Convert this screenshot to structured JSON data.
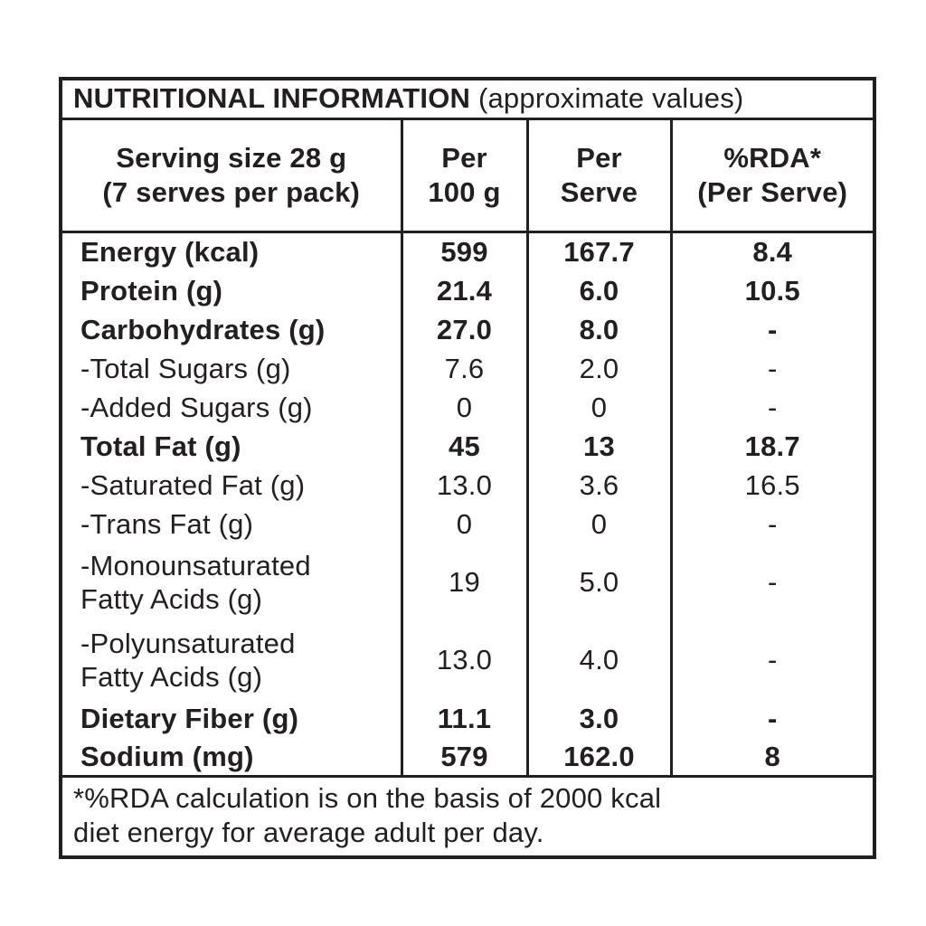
{
  "title": {
    "main": "NUTRITIONAL INFORMATION",
    "suffix": "(approximate values)"
  },
  "columns": [
    {
      "line1": "Serving size 28 g",
      "line2": "(7 serves per pack)"
    },
    {
      "line1": "Per",
      "line2": "100 g"
    },
    {
      "line1": "Per",
      "line2": "Serve"
    },
    {
      "line1": "%RDA*",
      "line2": "(Per Serve)"
    }
  ],
  "rows": [
    {
      "label": "Energy (kcal)",
      "label2": "",
      "per100": "599",
      "serve": "167.7",
      "rda": "8.4",
      "bold": true
    },
    {
      "label": "Protein (g)",
      "label2": "",
      "per100": "21.4",
      "serve": "6.0",
      "rda": "10.5",
      "bold": true
    },
    {
      "label": "Carbohydrates (g)",
      "label2": "",
      "per100": "27.0",
      "serve": "8.0",
      "rda": "-",
      "bold": true
    },
    {
      "label": "-Total Sugars (g)",
      "label2": "",
      "per100": "7.6",
      "serve": "2.0",
      "rda": "-",
      "bold": false
    },
    {
      "label": "-Added Sugars (g)",
      "label2": "",
      "per100": "0",
      "serve": "0",
      "rda": "-",
      "bold": false
    },
    {
      "label": "Total Fat (g)",
      "label2": "",
      "per100": "45",
      "serve": "13",
      "rda": "18.7",
      "bold": true
    },
    {
      "label": "-Saturated Fat (g)",
      "label2": "",
      "per100": "13.0",
      "serve": "3.6",
      "rda": "16.5",
      "bold": false
    },
    {
      "label": "-Trans Fat (g)",
      "label2": "",
      "per100": "0",
      "serve": "0",
      "rda": "-",
      "bold": false
    },
    {
      "label": "-Monounsaturated",
      "label2": "Fatty Acids (g)",
      "per100": "19",
      "serve": "5.0",
      "rda": "-",
      "bold": false
    },
    {
      "label": "-Polyunsaturated",
      "label2": "Fatty Acids (g)",
      "per100": "13.0",
      "serve": "4.0",
      "rda": "-",
      "bold": false
    },
    {
      "label": "Dietary Fiber (g)",
      "label2": "",
      "per100": "11.1",
      "serve": "3.0",
      "rda": "-",
      "bold": true
    },
    {
      "label": "Sodium (mg)",
      "label2": "",
      "per100": "579",
      "serve": "162.0",
      "rda": "8",
      "bold": true
    }
  ],
  "footnote": {
    "line1": "*%RDA calculation is on the basis of 2000 kcal",
    "line2": "diet energy for average adult per day."
  },
  "colors": {
    "text": "#231f20",
    "border": "#231f20",
    "background": "#ffffff"
  }
}
